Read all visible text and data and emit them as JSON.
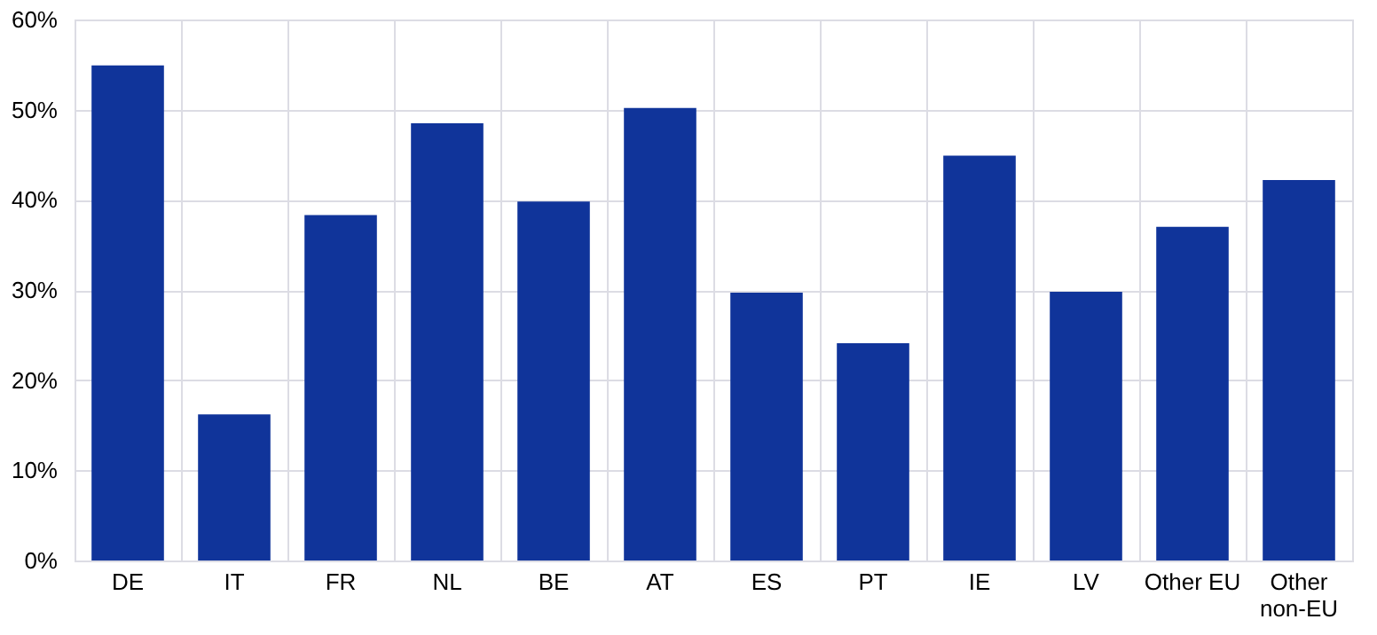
{
  "chart_data": {
    "type": "bar",
    "categories": [
      "DE",
      "IT",
      "FR",
      "NL",
      "BE",
      "AT",
      "ES",
      "PT",
      "IE",
      "LV",
      "Other EU",
      "Other non-EU"
    ],
    "values": [
      54.9,
      16.2,
      38.3,
      48.5,
      39.8,
      50.2,
      29.7,
      24.1,
      44.9,
      29.8,
      37.0,
      42.2
    ],
    "color": "#10349a",
    "ylim": [
      0,
      60
    ],
    "yticks": [
      {
        "value": 0,
        "label": "0%"
      },
      {
        "value": 10,
        "label": "10%"
      },
      {
        "value": 20,
        "label": "20%"
      },
      {
        "value": 30,
        "label": "30%"
      },
      {
        "value": 40,
        "label": "40%"
      },
      {
        "value": 50,
        "label": "50%"
      },
      {
        "value": 60,
        "label": "60%"
      }
    ],
    "grid": true
  }
}
